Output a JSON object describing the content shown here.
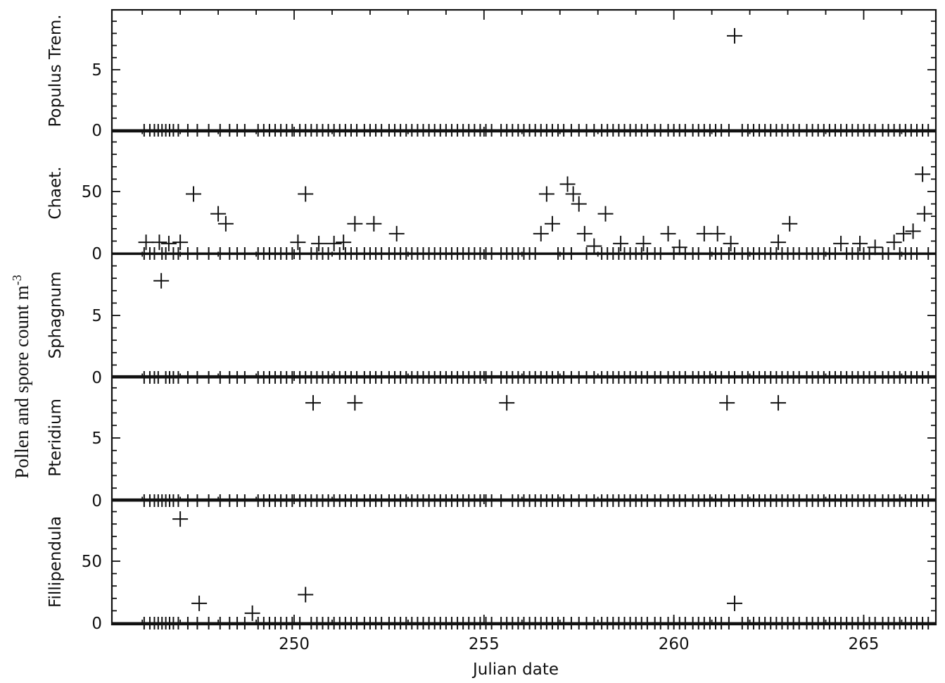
{
  "chart_data": {
    "type": "scatter",
    "marker": "plus",
    "ylabel": "Pollen and spore count m",
    "ylabel_superscript": "-3",
    "xlabel": "Julian date",
    "xlim": [
      245.2,
      266.9
    ],
    "xticks": [
      250,
      255,
      260,
      265
    ],
    "xtick_labels": [
      "250",
      "255",
      "260",
      "265"
    ],
    "grid": false,
    "legend": "none",
    "sample_times": [
      246.05,
      246.2,
      246.32,
      246.42,
      246.52,
      246.62,
      246.72,
      246.82,
      246.95,
      247.2,
      247.45,
      247.75,
      248.05,
      248.3,
      248.5,
      248.7,
      249.05,
      249.2,
      249.35,
      249.5,
      249.65,
      249.8,
      249.95,
      250.15,
      250.3,
      250.45,
      250.6,
      250.75,
      250.9,
      251.05,
      251.2,
      251.35,
      251.5,
      251.65,
      251.85,
      252.0,
      252.15,
      252.3,
      252.5,
      252.65,
      252.8,
      252.95,
      253.1,
      253.25,
      253.4,
      253.55,
      253.7,
      253.85,
      254.0,
      254.15,
      254.3,
      254.45,
      254.6,
      254.75,
      254.9,
      255.05,
      255.2,
      255.45,
      255.6,
      255.75,
      255.9,
      256.05,
      256.2,
      256.35,
      256.5,
      256.65,
      256.8,
      256.95,
      257.1,
      257.3,
      257.5,
      257.7,
      257.9,
      258.1,
      258.25,
      258.4,
      258.55,
      258.7,
      258.85,
      259.0,
      259.15,
      259.3,
      259.5,
      259.65,
      259.85,
      260.0,
      260.15,
      260.3,
      260.5,
      260.65,
      260.8,
      260.95,
      261.1,
      261.25,
      261.45,
      261.6,
      261.8,
      261.95,
      262.1,
      262.25,
      262.4,
      262.55,
      262.7,
      262.85,
      263.0,
      263.15,
      263.3,
      263.5,
      263.65,
      263.8,
      263.95,
      264.1,
      264.25,
      264.4,
      264.55,
      264.7,
      264.85,
      265.0,
      265.15,
      265.3,
      265.5,
      265.65,
      265.8,
      265.95,
      266.1,
      266.25,
      266.4,
      266.55,
      266.7
    ],
    "panels": [
      {
        "name": "Populus Trem.",
        "ylim": [
          0,
          10
        ],
        "yticks": [
          0,
          5
        ],
        "ytick_labels": [
          "0",
          "5"
        ],
        "points": [
          {
            "x": 261.6,
            "y": 7.8
          }
        ]
      },
      {
        "name": "Chaet.",
        "ylim": [
          0,
          100
        ],
        "yticks": [
          0,
          50
        ],
        "ytick_labels": [
          "0",
          "50"
        ],
        "points": [
          {
            "x": 246.1,
            "y": 9
          },
          {
            "x": 246.45,
            "y": 9
          },
          {
            "x": 246.7,
            "y": 8
          },
          {
            "x": 247.0,
            "y": 9
          },
          {
            "x": 247.35,
            "y": 48
          },
          {
            "x": 248.0,
            "y": 32
          },
          {
            "x": 248.2,
            "y": 24
          },
          {
            "x": 250.1,
            "y": 9
          },
          {
            "x": 250.3,
            "y": 48
          },
          {
            "x": 250.65,
            "y": 8
          },
          {
            "x": 251.05,
            "y": 8
          },
          {
            "x": 251.3,
            "y": 9
          },
          {
            "x": 251.6,
            "y": 24
          },
          {
            "x": 252.1,
            "y": 24
          },
          {
            "x": 252.7,
            "y": 16
          },
          {
            "x": 256.5,
            "y": 16
          },
          {
            "x": 256.65,
            "y": 48
          },
          {
            "x": 256.8,
            "y": 24
          },
          {
            "x": 257.2,
            "y": 56
          },
          {
            "x": 257.35,
            "y": 48
          },
          {
            "x": 257.5,
            "y": 40
          },
          {
            "x": 257.65,
            "y": 16
          },
          {
            "x": 257.9,
            "y": 6
          },
          {
            "x": 258.2,
            "y": 32
          },
          {
            "x": 258.6,
            "y": 8
          },
          {
            "x": 259.2,
            "y": 8
          },
          {
            "x": 259.85,
            "y": 16
          },
          {
            "x": 260.15,
            "y": 5
          },
          {
            "x": 260.8,
            "y": 16
          },
          {
            "x": 261.15,
            "y": 16
          },
          {
            "x": 261.5,
            "y": 8
          },
          {
            "x": 262.75,
            "y": 9
          },
          {
            "x": 263.05,
            "y": 24
          },
          {
            "x": 264.4,
            "y": 8
          },
          {
            "x": 264.9,
            "y": 8
          },
          {
            "x": 265.3,
            "y": 5
          },
          {
            "x": 265.8,
            "y": 9
          },
          {
            "x": 266.05,
            "y": 16
          },
          {
            "x": 266.3,
            "y": 18
          },
          {
            "x": 266.55,
            "y": 64
          },
          {
            "x": 266.6,
            "y": 32
          }
        ]
      },
      {
        "name": "Sphagnum",
        "ylim": [
          0,
          10
        ],
        "yticks": [
          0,
          5
        ],
        "ytick_labels": [
          "0",
          "5"
        ],
        "points": [
          {
            "x": 246.5,
            "y": 7.8
          }
        ]
      },
      {
        "name": "Pteridium",
        "ylim": [
          0,
          10
        ],
        "yticks": [
          0,
          5
        ],
        "ytick_labels": [
          "0",
          "5"
        ],
        "points": [
          {
            "x": 250.5,
            "y": 7.8
          },
          {
            "x": 251.6,
            "y": 7.8
          },
          {
            "x": 255.6,
            "y": 7.8
          },
          {
            "x": 261.4,
            "y": 7.8
          },
          {
            "x": 262.75,
            "y": 7.8
          }
        ]
      },
      {
        "name": "Fillipendula",
        "ylim": [
          0,
          100
        ],
        "yticks": [
          0,
          50
        ],
        "ytick_labels": [
          "0",
          "50"
        ],
        "points": [
          {
            "x": 247.0,
            "y": 84
          },
          {
            "x": 247.5,
            "y": 16
          },
          {
            "x": 248.9,
            "y": 8
          },
          {
            "x": 250.3,
            "y": 23
          },
          {
            "x": 261.6,
            "y": 16
          }
        ]
      }
    ]
  }
}
